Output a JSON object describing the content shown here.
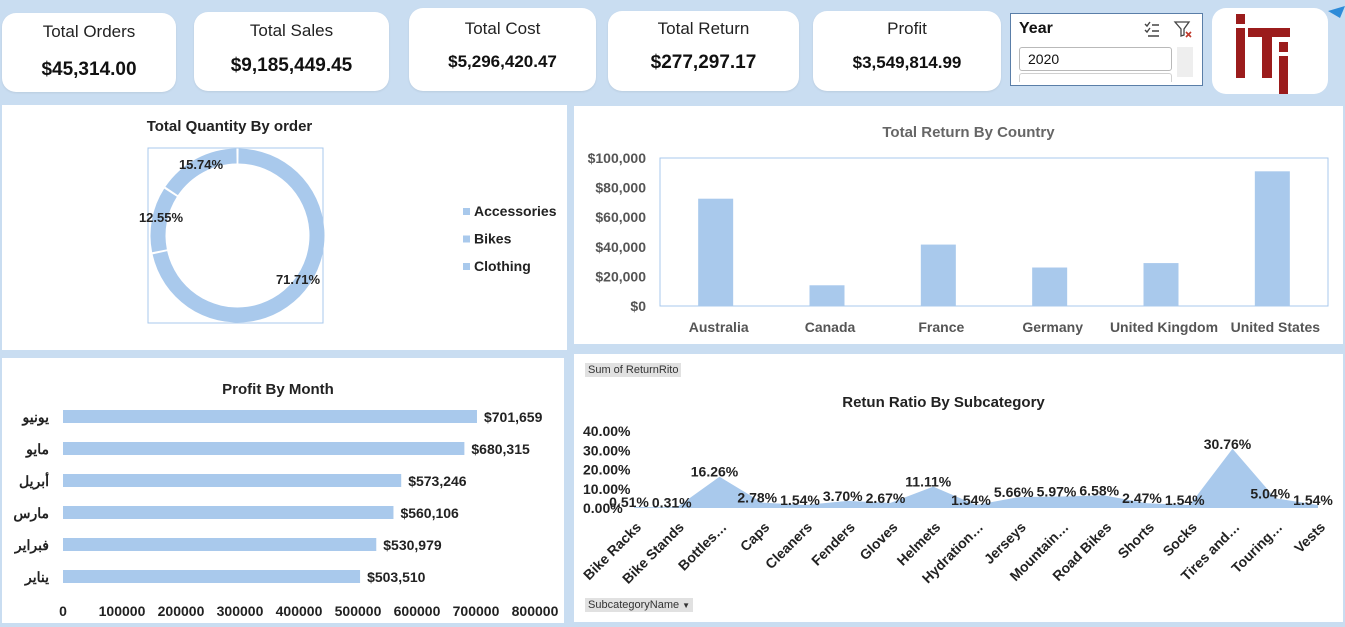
{
  "kpis": [
    {
      "title": "Total Orders",
      "value": "$45,314.00"
    },
    {
      "title": "Total Sales",
      "value": "$9,185,449.45"
    },
    {
      "title": "Total Cost",
      "value": "$5,296,420.47"
    },
    {
      "title": "Total Return",
      "value": "$277,297.17"
    },
    {
      "title": "Profit",
      "value": "$3,549,814.99"
    }
  ],
  "slicer": {
    "title": "Year",
    "selected": "2020"
  },
  "colors": {
    "bar": "#a9c9ec",
    "background": "#c9ddf1",
    "logo_red": "#9b1c1c"
  },
  "chart_data": [
    {
      "type": "pie",
      "title": "Total Quantity By order",
      "categories": [
        "Accessories",
        "Bikes",
        "Clothing"
      ],
      "values": [
        71.71,
        12.55,
        15.74
      ],
      "labels": [
        "71.71%",
        "12.55%",
        "15.74%"
      ],
      "legend": "right"
    },
    {
      "type": "bar",
      "title": "Total Return By Country",
      "categories": [
        "Australia",
        "Canada",
        "France",
        "Germany",
        "United Kingdom",
        "United States"
      ],
      "values": [
        72500,
        14000,
        41500,
        26000,
        29000,
        91000
      ],
      "ylim": [
        0,
        100000
      ],
      "yticks": [
        "$0",
        "$20,000",
        "$40,000",
        "$60,000",
        "$80,000",
        "$100,000"
      ]
    },
    {
      "type": "bar",
      "orientation": "horizontal",
      "title": "Profit By Month",
      "categories": [
        "يونيو",
        "مايو",
        "أبريل",
        "مارس",
        "فبراير",
        "يناير"
      ],
      "values": [
        701659,
        680315,
        573246,
        560106,
        530979,
        503510
      ],
      "labels": [
        "$701,659",
        "$680,315",
        "$573,246",
        "$560,106",
        "$530,979",
        "$503,510"
      ],
      "xlim": [
        0,
        800000
      ],
      "xticks": [
        "0",
        "100000",
        "200000",
        "300000",
        "400000",
        "500000",
        "600000",
        "700000",
        "800000"
      ]
    },
    {
      "type": "area",
      "title": "Retun Ratio By Subcategory",
      "field_button": "Sum of ReturnRito",
      "axis_button": "SubcategoryName",
      "categories": [
        "Bike Racks",
        "Bike Stands",
        "Bottles…",
        "Caps",
        "Cleaners",
        "Fenders",
        "Gloves",
        "Helmets",
        "Hydration…",
        "Jerseys",
        "Mountain…",
        "Road Bikes",
        "Shorts",
        "Socks",
        "Tires and…",
        "Touring…",
        "Vests"
      ],
      "values": [
        0.51,
        0.31,
        16.26,
        2.78,
        1.54,
        3.7,
        2.67,
        11.11,
        1.54,
        5.66,
        5.97,
        6.58,
        2.47,
        1.54,
        30.76,
        5.04,
        1.54
      ],
      "labels": [
        "0.51%",
        "0.31%",
        "16.26%",
        "2.78%",
        "1.54%",
        "3.70%",
        "2.67%",
        "11.11%",
        "1.54%",
        "5.66%",
        "5.97%",
        "6.58%",
        "2.47%",
        "1.54%",
        "30.76%",
        "5.04%",
        "1.54%"
      ],
      "ylim": [
        0,
        40
      ],
      "yticks": [
        "0.00%",
        "10.00%",
        "20.00%",
        "30.00%",
        "40.00%"
      ]
    }
  ]
}
